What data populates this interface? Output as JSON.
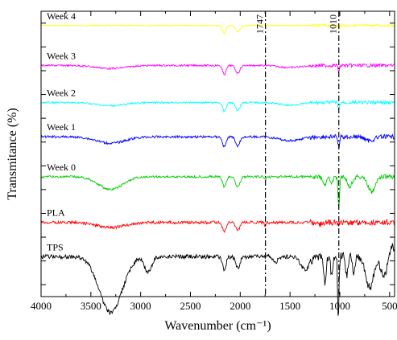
{
  "chart_data": {
    "type": "line",
    "title": "",
    "xlabel": "Wavenumber (cm⁻¹)",
    "ylabel": "Transmitance (%)",
    "xlim": [
      4000,
      450
    ],
    "x_reversed": true,
    "x_ticks": [
      4000,
      3500,
      3000,
      2500,
      2000,
      1500,
      1000,
      500
    ],
    "y_tick_count": 12,
    "y_tick_labels_shown": false,
    "grid": false,
    "reference_lines": [
      {
        "label": "1747",
        "x": 1747
      },
      {
        "label": "1010",
        "x": 1010
      }
    ],
    "series": [
      {
        "name": "Week 4",
        "color": "#ffff00",
        "baseline": 0.95
      },
      {
        "name": "Week 3",
        "color": "#ff00ff",
        "baseline": 0.81
      },
      {
        "name": "Week 2",
        "color": "#00ffff",
        "baseline": 0.68
      },
      {
        "name": "Week 1",
        "color": "#0000ff",
        "baseline": 0.56
      },
      {
        "name": "Week 0",
        "color": "#00cc00",
        "baseline": 0.42
      },
      {
        "name": "PLA",
        "color": "#ff0000",
        "baseline": 0.26
      },
      {
        "name": "TPS",
        "color": "#000000",
        "baseline": 0.14
      }
    ]
  }
}
